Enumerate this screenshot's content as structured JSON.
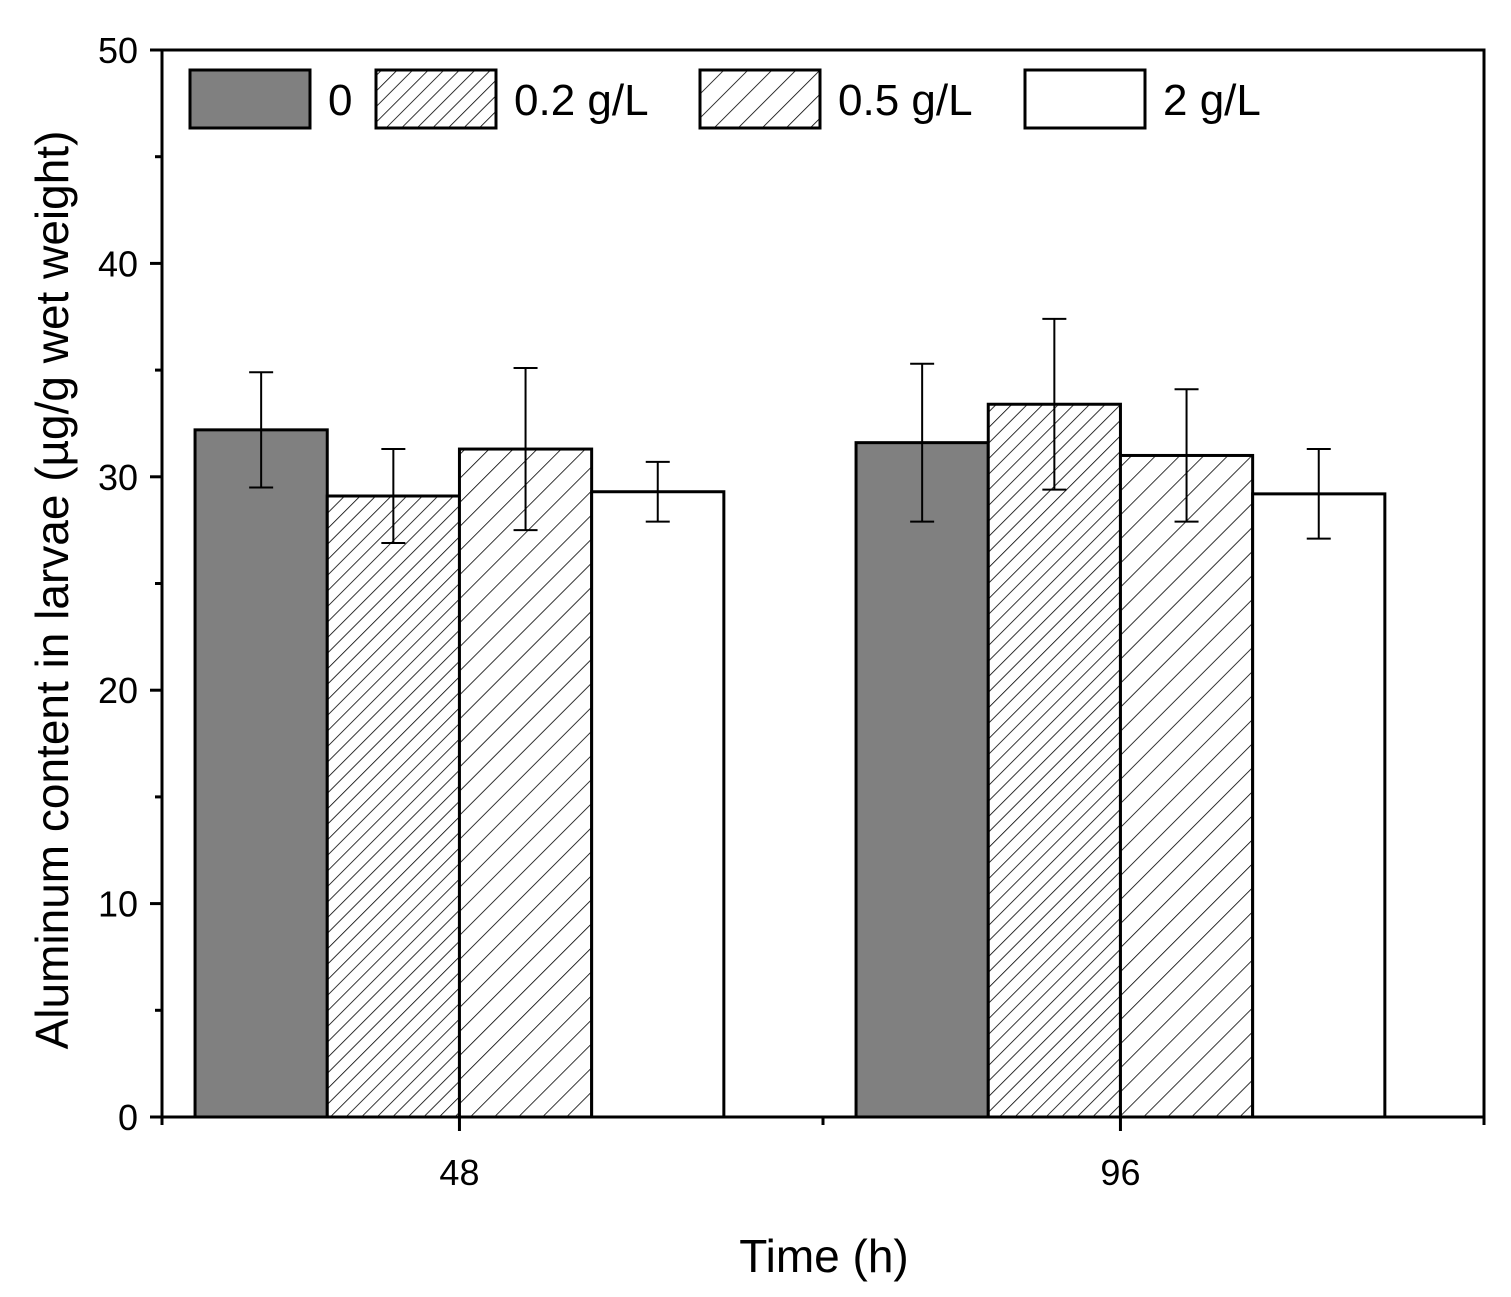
{
  "chart_data": {
    "type": "bar",
    "title": "",
    "xlabel": "Time (h)",
    "ylabel": "Aluminum content in larvae (µg/g wet weight)",
    "categories": [
      "48",
      "96"
    ],
    "ylim": [
      0,
      50
    ],
    "yticks": [
      0,
      10,
      20,
      30,
      40,
      50
    ],
    "legend_position": "top-left",
    "error_bars": true,
    "series": [
      {
        "name": "0",
        "fill": "#808080",
        "pattern": "solid",
        "values": [
          32.2,
          31.6
        ],
        "errors": [
          2.7,
          3.7
        ]
      },
      {
        "name": "0.2 g/L",
        "fill": "#ffffff",
        "pattern": "hatch-dense",
        "values": [
          29.1,
          33.4
        ],
        "errors": [
          2.2,
          4.0
        ]
      },
      {
        "name": "0.5 g/L",
        "fill": "#ffffff",
        "pattern": "hatch-sparse",
        "values": [
          31.3,
          31.0
        ],
        "errors": [
          3.8,
          3.1
        ]
      },
      {
        "name": "2 g/L",
        "fill": "#ffffff",
        "pattern": "solid",
        "values": [
          29.3,
          29.2
        ],
        "errors": [
          1.4,
          2.1
        ]
      }
    ]
  }
}
